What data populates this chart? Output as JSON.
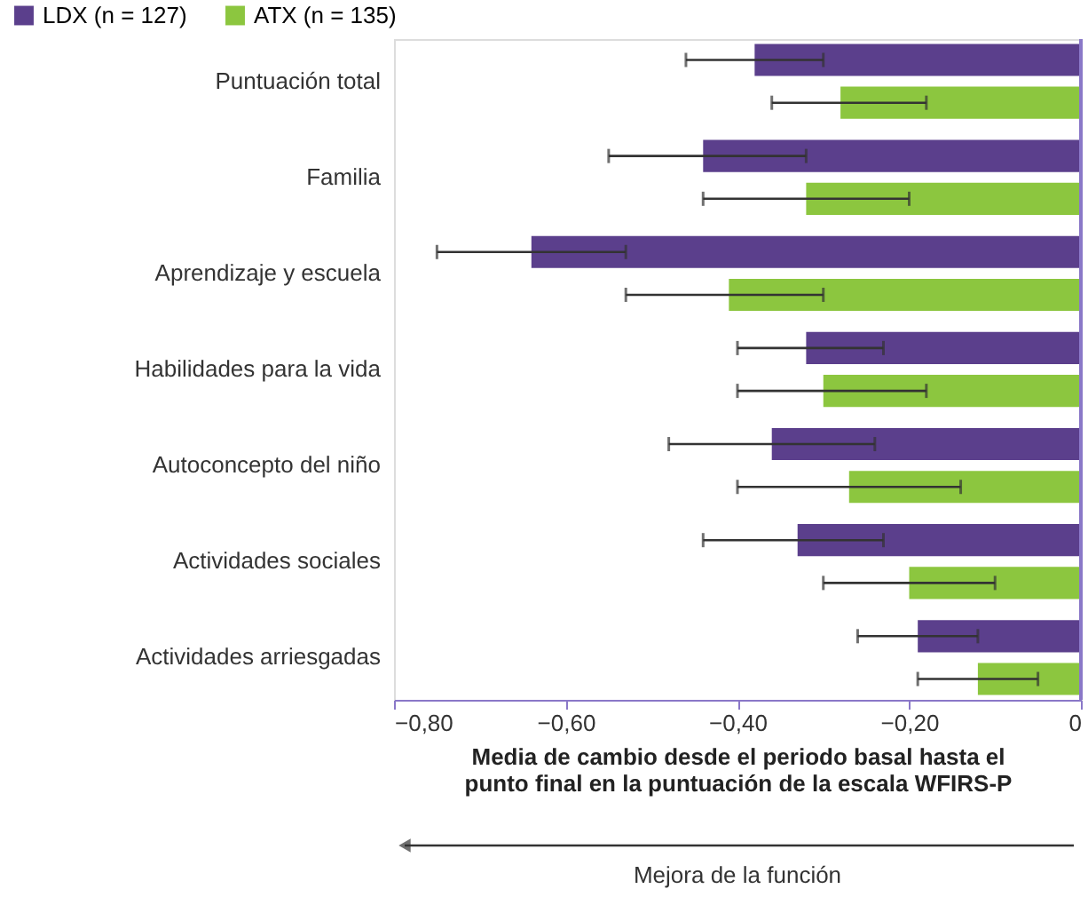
{
  "chart_data": {
    "type": "bar",
    "orientation": "horizontal",
    "categories": [
      "Puntuación total",
      "Familia",
      "Aprendizaje y escuela",
      "Habilidades para la vida",
      "Autoconcepto del niño",
      "Actividades sociales",
      "Actividades arriesgadas"
    ],
    "series": [
      {
        "name": "LDX (n = 127)",
        "color": "#5b3f8c",
        "values": [
          -0.38,
          -0.44,
          -0.64,
          -0.32,
          -0.36,
          -0.33,
          -0.19
        ],
        "errors": [
          [
            -0.46,
            -0.3
          ],
          [
            -0.55,
            -0.32
          ],
          [
            -0.75,
            -0.53
          ],
          [
            -0.4,
            -0.23
          ],
          [
            -0.48,
            -0.24
          ],
          [
            -0.44,
            -0.23
          ],
          [
            -0.26,
            -0.12
          ]
        ]
      },
      {
        "name": "ATX (n = 135)",
        "color": "#8cc63f",
        "values": [
          -0.28,
          -0.32,
          -0.41,
          -0.3,
          -0.27,
          -0.2,
          -0.12
        ],
        "errors": [
          [
            -0.36,
            -0.18
          ],
          [
            -0.44,
            -0.2
          ],
          [
            -0.53,
            -0.3
          ],
          [
            -0.4,
            -0.18
          ],
          [
            -0.4,
            -0.14
          ],
          [
            -0.3,
            -0.1
          ],
          [
            -0.19,
            -0.05
          ]
        ]
      }
    ],
    "xlim": [
      -0.8,
      0
    ],
    "xticks": [
      {
        "value": -0.8,
        "label": "−0,80"
      },
      {
        "value": -0.6,
        "label": "−0,60"
      },
      {
        "value": -0.4,
        "label": "−0,40"
      },
      {
        "value": -0.2,
        "label": "−0,20"
      },
      0
    ],
    "xlabel": "Media de cambio desde el periodo basal hasta el\npunto final en la puntuación de la escala WFIRS-P",
    "ref_lines": [
      {
        "axis": "x",
        "value": 0,
        "color": "#8a78c8"
      }
    ],
    "annotations": [
      "Mejora de la función"
    ],
    "legend": "top left",
    "grid": false
  }
}
